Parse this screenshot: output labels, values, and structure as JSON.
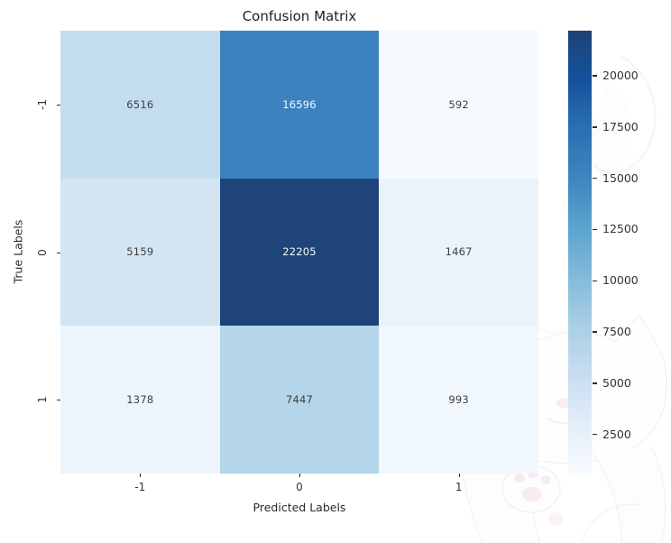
{
  "chart_data": {
    "type": "heatmap",
    "title": "Confusion Matrix",
    "xlabel": "Predicted Labels",
    "ylabel": "True Labels",
    "x_ticklabels": [
      "-1",
      "0",
      "1"
    ],
    "y_ticklabels": [
      "-1",
      "0",
      "1"
    ],
    "matrix": [
      [
        6516,
        16596,
        592
      ],
      [
        5159,
        22205,
        1467
      ],
      [
        1378,
        7447,
        993
      ]
    ],
    "cell_colors": [
      [
        "#c3ddef",
        "#3d82be",
        "#f6fafe"
      ],
      [
        "#d3e4f3",
        "#1f4479",
        "#eaf2fa"
      ],
      [
        "#edf5fc",
        "#b4d5ea",
        "#f0f7fd"
      ]
    ],
    "annotation_color_dark": "#3f3f3f",
    "annotation_color_light": "#f4f8fc",
    "colormap": "Blues",
    "grid_on": false,
    "colorbar": {
      "position": "right",
      "vmin": 592,
      "vmax": 22205,
      "ticks": [
        2500,
        5000,
        7500,
        10000,
        12500,
        15000,
        17500,
        20000
      ],
      "gradient_stops_top_to_bottom": [
        "#1e4173",
        "#16529c",
        "#2a70b2",
        "#3d86c0",
        "#5ba3cf",
        "#83badb",
        "#a9cfe5",
        "#c8dcf0",
        "#e3eef8",
        "#f7fbff"
      ]
    }
  }
}
